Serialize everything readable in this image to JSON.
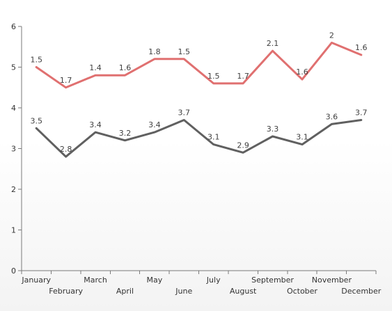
{
  "chart_data": {
    "type": "line",
    "title": "",
    "xlabel": "",
    "ylabel": "",
    "categories": [
      "January",
      "February",
      "March",
      "April",
      "May",
      "June",
      "July",
      "August",
      "September",
      "October",
      "November",
      "December"
    ],
    "ylim": [
      0,
      6
    ],
    "yticks": [
      0,
      1,
      2,
      3,
      4,
      5,
      6
    ],
    "grid": false,
    "legend": "none",
    "series": [
      {
        "color": "#e07070",
        "values": [
          5.0,
          4.5,
          4.8,
          4.8,
          5.2,
          5.2,
          4.6,
          4.6,
          5.4,
          4.7,
          5.6,
          5.3
        ],
        "labels": [
          "1.5",
          "1.7",
          "1.4",
          "1.6",
          "1.8",
          "1.5",
          "1.5",
          "1.7",
          "2.1",
          "1.6",
          "2",
          "1.6"
        ]
      },
      {
        "color": "#606060",
        "values": [
          3.5,
          2.8,
          3.4,
          3.2,
          3.4,
          3.7,
          3.1,
          2.9,
          3.3,
          3.1,
          3.6,
          3.7
        ],
        "labels": [
          "3.5",
          "2.8",
          "3.4",
          "3.2",
          "3.4",
          "3.7",
          "3.1",
          "2.9",
          "3.3",
          "3.1",
          "3.6",
          "3.7"
        ]
      }
    ]
  }
}
